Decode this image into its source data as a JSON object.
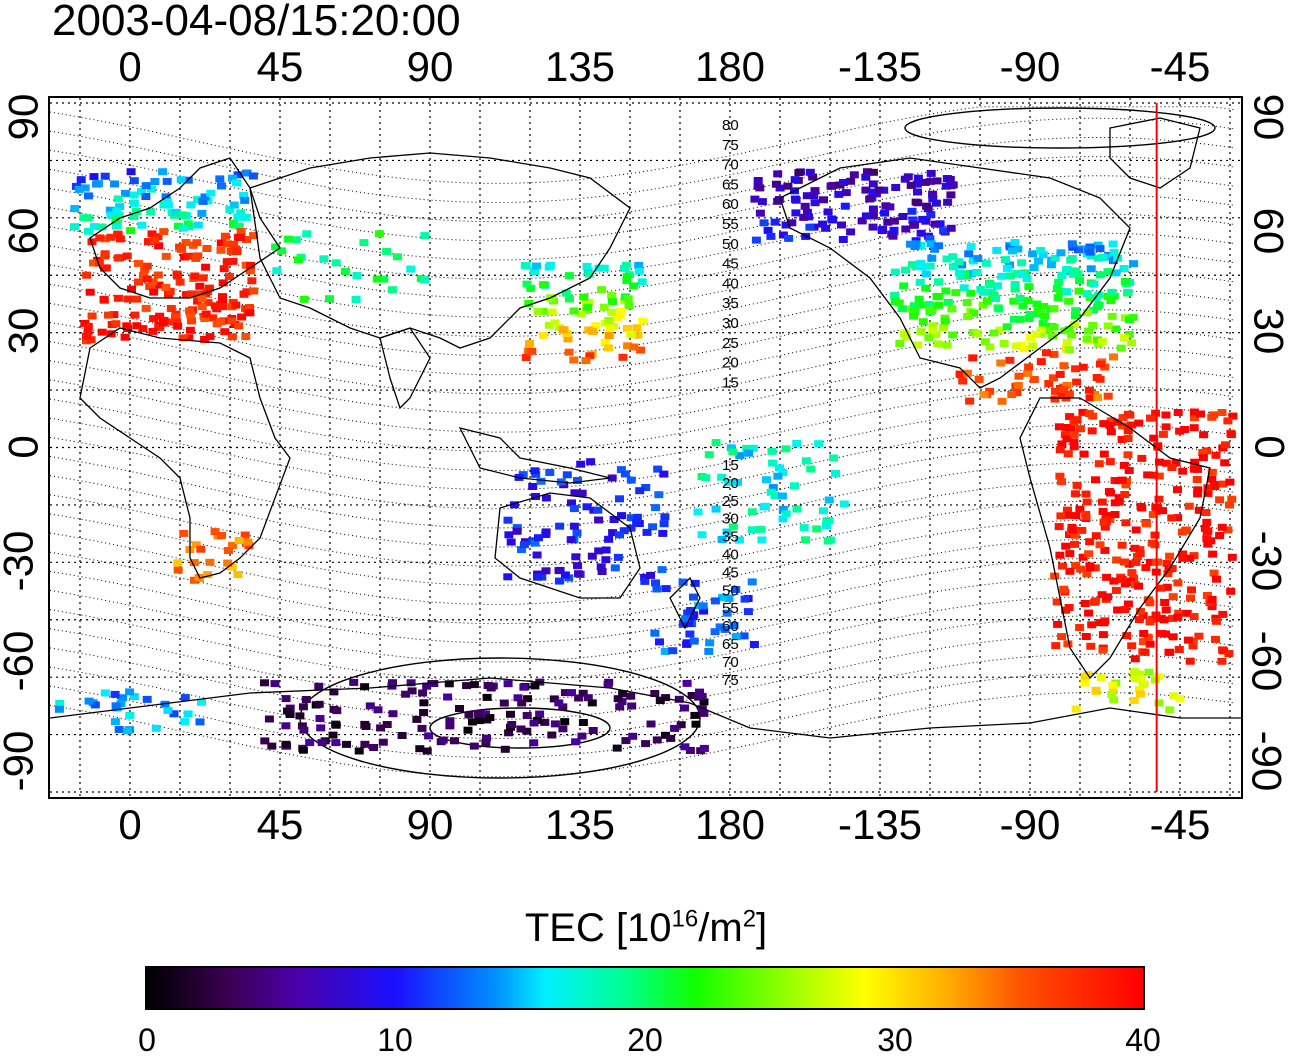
{
  "timestamp": "2003-04-08/15:20:00",
  "map": {
    "longitude_labels": [
      "0",
      "45",
      "90",
      "135",
      "180",
      "-135",
      "-90",
      "-45"
    ],
    "latitude_labels": [
      "90",
      "60",
      "30",
      "0",
      "-30",
      "-60",
      "-90"
    ],
    "magnetic_latitude_labels_north": [
      "80",
      "75",
      "70",
      "65",
      "60",
      "55",
      "50",
      "45",
      "40",
      "35",
      "30",
      "25",
      "20",
      "15"
    ],
    "magnetic_latitude_labels_south": [
      "15",
      "20",
      "25",
      "30",
      "35",
      "40",
      "45",
      "50",
      "55",
      "60",
      "65",
      "70",
      "75"
    ],
    "terminator_longitude": -52
  },
  "colorbar": {
    "title_main": "TEC  [10",
    "title_exp1": "16",
    "title_mid": "/m",
    "title_exp2": "2",
    "title_end": "]",
    "min": 0,
    "max": 40,
    "tick_labels": [
      "0",
      "10",
      "20",
      "30",
      "40"
    ]
  },
  "colors": {
    "terminator": "#ff0000",
    "coastline": "#000000",
    "grid": "#000000"
  }
}
